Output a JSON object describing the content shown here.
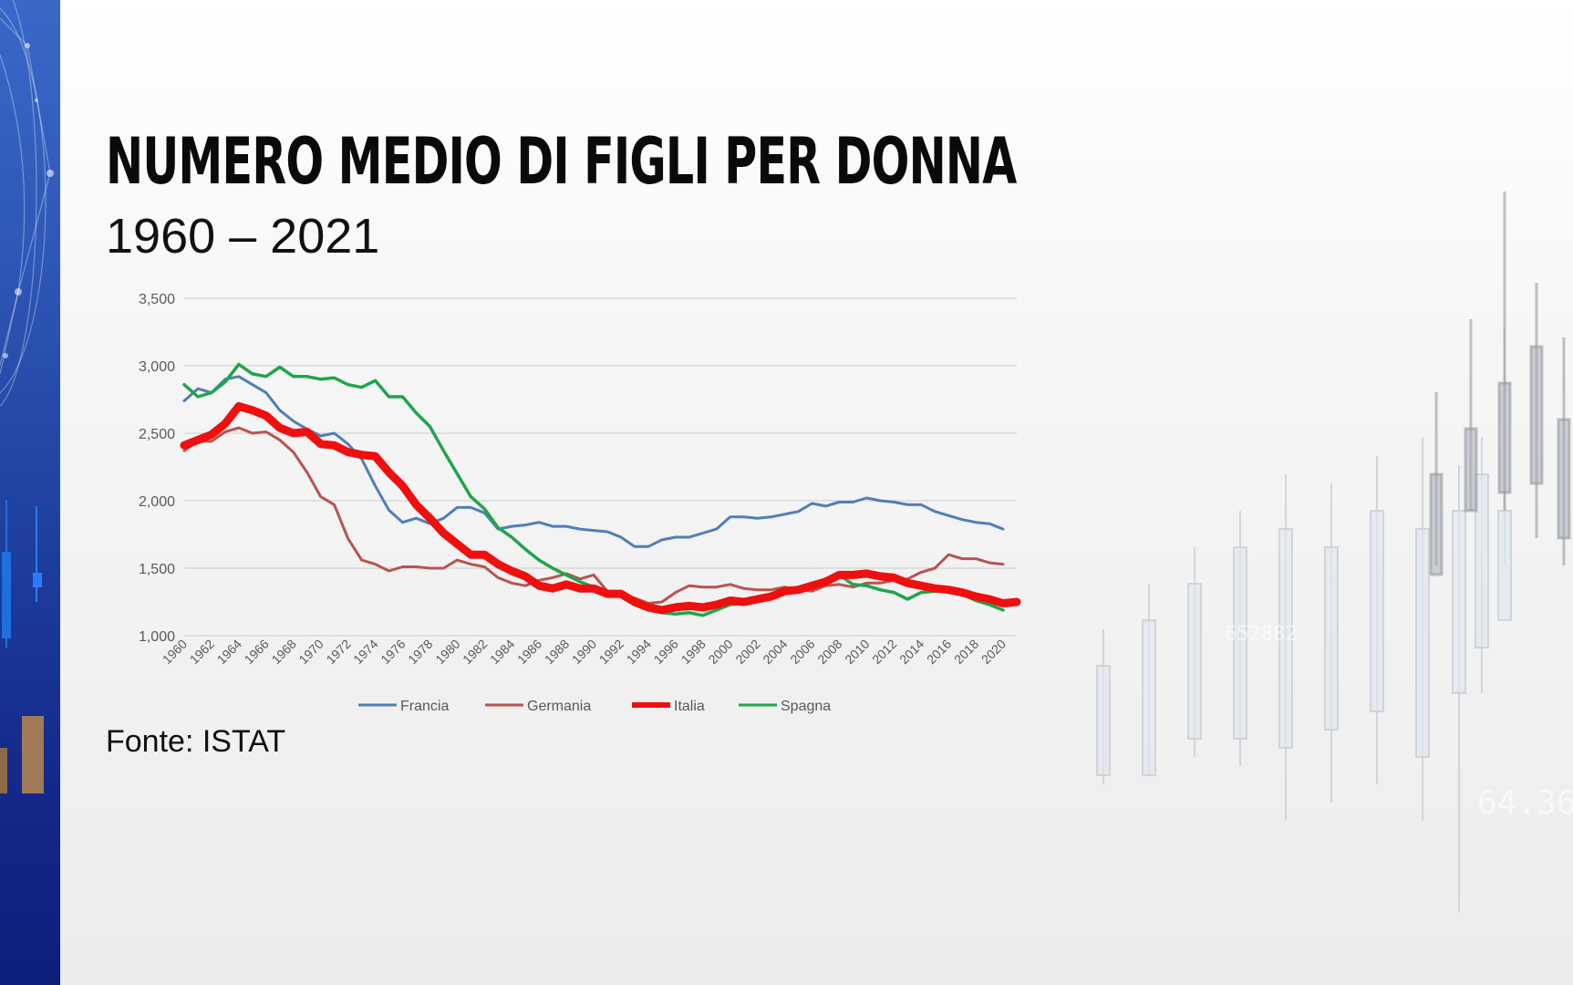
{
  "header": {
    "title": "NUMERO MEDIO DI FIGLI PER DONNA",
    "subtitle": "1960 – 2021"
  },
  "footer": {
    "source": "Fonte: ISTAT"
  },
  "colors": {
    "Francia": "#4f7fb8",
    "Germania": "#b85450",
    "Italia": "#ee0f0f",
    "Spagna": "#1fa54a",
    "grid": "#d4d4d4",
    "axis_text": "#595959",
    "sidebar": "#2a50b0"
  },
  "chart_data": {
    "type": "line",
    "x": [
      1960,
      1961,
      1962,
      1963,
      1964,
      1965,
      1966,
      1967,
      1968,
      1969,
      1970,
      1971,
      1972,
      1973,
      1974,
      1975,
      1976,
      1977,
      1978,
      1979,
      1980,
      1981,
      1982,
      1983,
      1984,
      1985,
      1986,
      1987,
      1988,
      1989,
      1990,
      1991,
      1992,
      1993,
      1994,
      1995,
      1996,
      1997,
      1998,
      1999,
      2000,
      2001,
      2002,
      2003,
      2004,
      2005,
      2006,
      2007,
      2008,
      2009,
      2010,
      2011,
      2012,
      2013,
      2014,
      2015,
      2016,
      2017,
      2018,
      2019,
      2020,
      2021
    ],
    "x_tick_labels": [
      "1960",
      "1962",
      "1964",
      "1966",
      "1968",
      "1970",
      "1972",
      "1974",
      "1976",
      "1978",
      "1980",
      "1982",
      "1984",
      "1986",
      "1988",
      "1990",
      "1992",
      "1994",
      "1996",
      "1998",
      "2000",
      "2002",
      "2004",
      "2006",
      "2008",
      "2010",
      "2012",
      "2014",
      "2016",
      "2018",
      "2020"
    ],
    "y_tick_labels": [
      "1,000",
      "1,500",
      "2,000",
      "2,500",
      "3,000",
      "3,500"
    ],
    "ylim": [
      1.0,
      3.5
    ],
    "grid": true,
    "legend_position": "bottom",
    "series": [
      {
        "name": "Francia",
        "values": [
          2.74,
          2.83,
          2.8,
          2.9,
          2.92,
          2.86,
          2.8,
          2.67,
          2.59,
          2.53,
          2.48,
          2.5,
          2.42,
          2.31,
          2.11,
          1.93,
          1.84,
          1.87,
          1.83,
          1.87,
          1.95,
          1.95,
          1.91,
          1.79,
          1.81,
          1.82,
          1.84,
          1.81,
          1.81,
          1.79,
          1.78,
          1.77,
          1.73,
          1.66,
          1.66,
          1.71,
          1.73,
          1.73,
          1.76,
          1.79,
          1.88,
          1.88,
          1.87,
          1.88,
          1.9,
          1.92,
          1.98,
          1.96,
          1.99,
          1.99,
          2.02,
          2.0,
          1.99,
          1.97,
          1.97,
          1.92,
          1.89,
          1.86,
          1.84,
          1.83,
          1.79,
          null
        ]
      },
      {
        "name": "Germania",
        "values": [
          2.37,
          2.44,
          2.44,
          2.51,
          2.54,
          2.5,
          2.51,
          2.45,
          2.36,
          2.21,
          2.03,
          1.97,
          1.72,
          1.56,
          1.53,
          1.48,
          1.51,
          1.51,
          1.5,
          1.5,
          1.56,
          1.53,
          1.51,
          1.43,
          1.39,
          1.37,
          1.41,
          1.43,
          1.46,
          1.42,
          1.45,
          1.33,
          1.29,
          1.28,
          1.24,
          1.25,
          1.32,
          1.37,
          1.36,
          1.36,
          1.38,
          1.35,
          1.34,
          1.34,
          1.36,
          1.34,
          1.33,
          1.37,
          1.38,
          1.36,
          1.39,
          1.39,
          1.41,
          1.42,
          1.47,
          1.5,
          1.6,
          1.57,
          1.57,
          1.54,
          1.53,
          null
        ]
      },
      {
        "name": "Italia",
        "values": [
          2.41,
          2.45,
          2.49,
          2.57,
          2.7,
          2.67,
          2.63,
          2.54,
          2.5,
          2.51,
          2.42,
          2.41,
          2.36,
          2.34,
          2.33,
          2.21,
          2.11,
          1.97,
          1.87,
          1.76,
          1.68,
          1.6,
          1.6,
          1.53,
          1.48,
          1.44,
          1.37,
          1.35,
          1.38,
          1.35,
          1.35,
          1.31,
          1.31,
          1.25,
          1.21,
          1.19,
          1.21,
          1.22,
          1.21,
          1.23,
          1.26,
          1.25,
          1.27,
          1.29,
          1.33,
          1.34,
          1.37,
          1.4,
          1.45,
          1.45,
          1.46,
          1.44,
          1.43,
          1.39,
          1.37,
          1.35,
          1.34,
          1.32,
          1.29,
          1.27,
          1.24,
          1.25
        ]
      },
      {
        "name": "Spagna",
        "values": [
          2.86,
          2.77,
          2.8,
          2.88,
          3.01,
          2.94,
          2.92,
          2.99,
          2.92,
          2.92,
          2.9,
          2.91,
          2.86,
          2.84,
          2.89,
          2.77,
          2.77,
          2.65,
          2.55,
          2.37,
          2.2,
          2.03,
          1.94,
          1.8,
          1.73,
          1.64,
          1.56,
          1.5,
          1.45,
          1.4,
          1.36,
          1.33,
          1.32,
          1.27,
          1.21,
          1.17,
          1.16,
          1.17,
          1.15,
          1.19,
          1.23,
          1.24,
          1.26,
          1.31,
          1.32,
          1.34,
          1.38,
          1.38,
          1.45,
          1.38,
          1.37,
          1.34,
          1.32,
          1.27,
          1.32,
          1.33,
          1.34,
          1.31,
          1.26,
          1.23,
          1.19,
          null
        ]
      }
    ]
  }
}
